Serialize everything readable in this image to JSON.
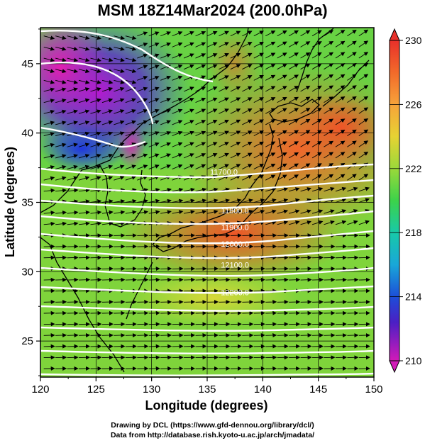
{
  "title": "MSM 18Z14Mar2024 (200.0hPa)",
  "axes": {
    "xlabel": "Longitude (degrees)",
    "ylabel": "Latitude  (degrees)",
    "x_ticks": [
      "120",
      "125",
      "130",
      "135",
      "140",
      "145",
      "150"
    ],
    "y_ticks": [
      "25",
      "30",
      "35",
      "40",
      "45"
    ]
  },
  "colorbar": {
    "tick_labels": [
      "230",
      "226",
      "222",
      "218",
      "214",
      "210"
    ]
  },
  "contour_labels": [
    "11800.0",
    "11900.0",
    "12000.0",
    "12100.0",
    "12200.0",
    "11700.0"
  ],
  "credits": {
    "line1": "Drawing by DCL (https://www.gfd-dennou.org/library/dcl/)",
    "line2": "Data from http://database.rish.kyoto-u.ac.jp/arch/jmadata/"
  },
  "chart_data": {
    "type": "heatmap",
    "title": "MSM 18Z14Mar2024 (200.0hPa)",
    "xlabel": "Longitude (degrees)",
    "ylabel": "Latitude  (degrees)",
    "xlim": [
      120,
      150
    ],
    "ylim": [
      22.4,
      47.6
    ],
    "colorbar_range": [
      210,
      230
    ],
    "colorbar_ticks": [
      230,
      226,
      222,
      218,
      214,
      210
    ],
    "contours": [
      {
        "label": "11700.0",
        "lon": 136.5,
        "lat": 37.0
      },
      {
        "label": "11800.0",
        "lon": 137.5,
        "lat": 34.2
      },
      {
        "label": "11900.0",
        "lon": 137.5,
        "lat": 33.0
      },
      {
        "label": "12000.0",
        "lon": 137.5,
        "lat": 31.8
      },
      {
        "label": "12100.0",
        "lon": 137.5,
        "lat": 30.3
      },
      {
        "label": "12200.0",
        "lon": 137.5,
        "lat": 28.3
      }
    ]
  }
}
